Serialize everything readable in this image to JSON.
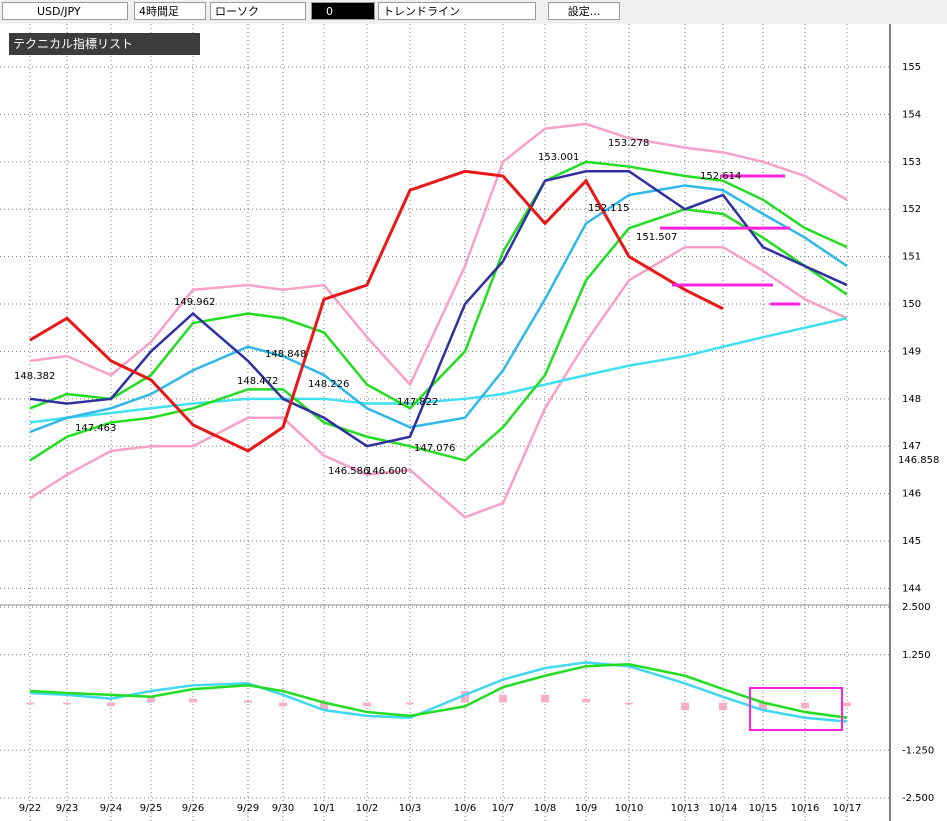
{
  "toolbar": {
    "symbol": "USD/JPY",
    "timeframe": "4時間足",
    "chart_style": "ローソク",
    "tool_count": "0",
    "tool": "トレンドライン",
    "settings": "設定..."
  },
  "panel": {
    "title": "テクニカル指標リスト"
  },
  "chart_data": [
    {
      "type": "line",
      "categories": [
        "9/22",
        "9/23",
        "9/24",
        "9/25",
        "9/26",
        "9/29",
        "9/30",
        "10/1",
        "10/2",
        "10/3",
        "10/6",
        "10/7",
        "10/8",
        "10/9",
        "10/10",
        "10/13",
        "10/14",
        "10/15",
        "10/16",
        "10/17"
      ],
      "ylim": [
        143.65,
        155.95
      ],
      "yticks": [
        144,
        145,
        146,
        147,
        148,
        149,
        150,
        151,
        152,
        153,
        154,
        155
      ],
      "grid": true,
      "current_price": {
        "value": 146.858,
        "label": "146.858"
      },
      "series": [
        {
          "name": "pink-upper",
          "color": "#f7a0c8",
          "values": [
            148.8,
            148.9,
            148.5,
            149.2,
            150.3,
            150.4,
            150.3,
            150.4,
            149.3,
            148.3,
            150.8,
            153.0,
            153.7,
            153.8,
            153.5,
            153.3,
            153.2,
            153.0,
            152.7,
            152.2
          ]
        },
        {
          "name": "pink-lower",
          "color": "#f7a0c8",
          "values": [
            145.9,
            146.4,
            146.9,
            147.0,
            147.0,
            147.6,
            147.6,
            146.8,
            146.4,
            146.5,
            145.5,
            145.8,
            147.8,
            149.2,
            150.5,
            151.2,
            151.2,
            150.7,
            150.1,
            149.7
          ]
        },
        {
          "name": "long-ma",
          "color": "#40e0f0",
          "values": [
            147.5,
            147.6,
            147.7,
            147.8,
            147.9,
            148.0,
            148.0,
            148.0,
            147.9,
            147.9,
            148.0,
            148.1,
            148.3,
            148.5,
            148.7,
            148.9,
            149.1,
            149.3,
            149.5,
            149.7
          ]
        },
        {
          "name": "green-upper",
          "color": "#22dd22",
          "values": [
            147.8,
            148.1,
            148.0,
            148.5,
            149.6,
            149.8,
            149.7,
            149.4,
            148.3,
            147.8,
            149.0,
            151.1,
            152.6,
            153.0,
            152.9,
            152.7,
            152.6,
            152.2,
            151.6,
            151.2
          ]
        },
        {
          "name": "green-lower",
          "color": "#22dd22",
          "values": [
            146.7,
            147.2,
            147.5,
            147.6,
            147.8,
            148.2,
            148.2,
            147.5,
            147.2,
            147.0,
            146.7,
            147.4,
            148.5,
            150.5,
            151.6,
            152.0,
            151.9,
            151.4,
            150.8,
            150.2
          ]
        },
        {
          "name": "mid-ma",
          "color": "#30b8e8",
          "values": [
            147.3,
            147.6,
            147.8,
            148.1,
            148.6,
            149.1,
            148.9,
            148.5,
            147.8,
            147.4,
            147.6,
            148.6,
            150.1,
            151.7,
            152.3,
            152.5,
            152.4,
            151.9,
            151.4,
            150.8
          ]
        },
        {
          "name": "close",
          "color": "#3030a0",
          "values": [
            148.0,
            147.9,
            148.0,
            149.0,
            149.8,
            148.8,
            148.0,
            147.6,
            147.0,
            147.2,
            150.0,
            150.9,
            152.6,
            152.8,
            152.8,
            152.0,
            152.3,
            151.2,
            150.8,
            150.4
          ]
        },
        {
          "name": "chikou",
          "color": "#e81818",
          "values": [
            149.24,
            149.7,
            148.8,
            148.4,
            147.45,
            146.9,
            147.4,
            150.1,
            150.4,
            152.4,
            152.8,
            152.7,
            151.7,
            152.6,
            151.0,
            150.3,
            149.9,
            null,
            null,
            null
          ]
        }
      ],
      "annotations": [
        "148.382",
        "147.463",
        "149.962",
        "148.472",
        "148.848",
        "148.226",
        "146.586",
        "146.600",
        "147.822",
        "147.076",
        "153.001",
        "153.278",
        "152.115",
        "151.507",
        "152.614"
      ],
      "trendlines": [
        152.7,
        151.6,
        150.4,
        150.0
      ],
      "trendline_color": "#ff22dd"
    },
    {
      "type": "line",
      "ylim": [
        -2.5,
        2.5
      ],
      "yticks": [
        {
          "value": 2.5,
          "label": "2.500"
        },
        {
          "value": 1.25,
          "label": "1.250"
        },
        {
          "value": -1.25,
          "label": "-1.250"
        },
        {
          "value": -2.5,
          "label": "-2.500"
        }
      ],
      "series": [
        {
          "name": "histogram",
          "color": "#f7b0c8",
          "style": "bar",
          "values": [
            -0.05,
            -0.05,
            -0.1,
            0.15,
            0.1,
            0.05,
            -0.1,
            -0.2,
            -0.1,
            -0.05,
            0.3,
            0.2,
            0.2,
            0.1,
            -0.05,
            -0.2,
            -0.2,
            -0.2,
            -0.15,
            -0.1
          ]
        },
        {
          "name": "macd",
          "color": "#40d8f0",
          "values": [
            0.25,
            0.2,
            0.1,
            0.3,
            0.45,
            0.5,
            0.2,
            -0.2,
            -0.35,
            -0.4,
            0.2,
            0.6,
            0.9,
            1.05,
            0.95,
            0.5,
            0.15,
            -0.2,
            -0.4,
            -0.5
          ]
        },
        {
          "name": "signal",
          "color": "#22dd22",
          "values": [
            0.3,
            0.25,
            0.2,
            0.15,
            0.35,
            0.45,
            0.3,
            0.0,
            -0.25,
            -0.35,
            -0.1,
            0.4,
            0.7,
            0.95,
            1.0,
            0.7,
            0.35,
            0.0,
            -0.25,
            -0.4
          ]
        }
      ]
    }
  ]
}
